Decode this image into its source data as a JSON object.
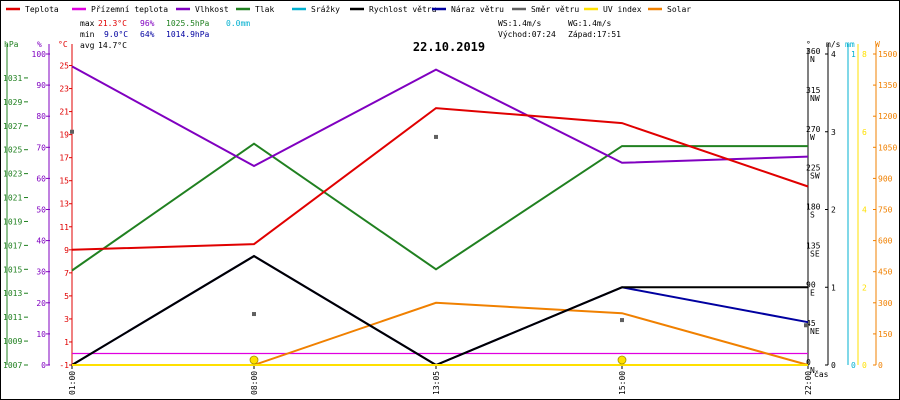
{
  "legend": [
    {
      "label": "Teplota",
      "color": "#e00000"
    },
    {
      "label": "Přízemní teplota",
      "color": "#e000e0"
    },
    {
      "label": "Vlhkost",
      "color": "#8000c0"
    },
    {
      "label": "Tlak",
      "color": "#208020"
    },
    {
      "label": "Srážky",
      "color": "#00b0d0"
    },
    {
      "label": "Rychlost větru",
      "color": "#000000"
    },
    {
      "label": "Náraz větru",
      "color": "#0000a0"
    },
    {
      "label": "Směr větru",
      "color": "#606060"
    },
    {
      "label": "UV index",
      "color": "#ffe000"
    },
    {
      "label": "Solar",
      "color": "#f08000"
    }
  ],
  "stats": {
    "max_label": "max",
    "max_temp": "21.3°C",
    "max_hum": "96%",
    "max_press": "1025.5hPa",
    "max_rain": "0.0mm",
    "min_label": "min",
    "min_temp": "9.0°C",
    "min_hum": "64%",
    "min_press": "1014.9hPa",
    "avg_label": "avg",
    "avg_temp": "14.7°C",
    "ws": "WS:1.4m/s",
    "wg": "WG:1.4m/s",
    "sunrise": "Východ:07:24",
    "sunset": "Západ:17:51"
  },
  "colors": {
    "temp": "#e00000",
    "ground": "#e000e0",
    "hum": "#8000c0",
    "press": "#208020",
    "rain": "#00b0d0",
    "wind": "#000000",
    "gust": "#0000a0",
    "dir": "#606060",
    "uv": "#ffe000",
    "solar": "#f08000"
  },
  "chart_data": {
    "type": "line",
    "title": "22.10.2019",
    "xlabel": "čas",
    "categories": [
      "01:00",
      "08:00",
      "13:05",
      "15:00",
      "22:00"
    ],
    "series": [
      {
        "name": "Teplota",
        "unit": "°C",
        "values": [
          9.0,
          9.5,
          21.3,
          20.0,
          14.5
        ]
      },
      {
        "name": "Přízemní teplota",
        "unit": "°C",
        "values": [
          0.0,
          0.0,
          0.0,
          0.0,
          0.0
        ]
      },
      {
        "name": "Vlhkost",
        "unit": "%",
        "values": [
          96,
          64,
          95,
          65,
          67
        ]
      },
      {
        "name": "Tlak",
        "unit": "hPa",
        "values": [
          1014.9,
          1025.5,
          1015.0,
          1025.3,
          1025.3
        ]
      },
      {
        "name": "Srážky",
        "unit": "mm",
        "values": [
          0.0,
          0.0,
          0.0,
          0.0,
          0.0
        ]
      },
      {
        "name": "Rychlost větru",
        "unit": "m/s",
        "values": [
          0.0,
          1.4,
          0.0,
          1.0,
          1.0
        ]
      },
      {
        "name": "Náraz větru",
        "unit": "m/s",
        "values": [
          0.0,
          1.4,
          0.0,
          1.0,
          0.55
        ]
      },
      {
        "name": "Směr větru",
        "unit": "°",
        "values": [
          270,
          59,
          264,
          52,
          46
        ]
      },
      {
        "name": "UV index",
        "unit": "",
        "values": [
          0,
          0,
          0,
          0,
          0
        ]
      },
      {
        "name": "Solar",
        "unit": "W",
        "values": [
          0,
          0,
          300,
          250,
          0
        ]
      }
    ],
    "axes": {
      "hPa": {
        "label": "hPa",
        "ticks": [
          "1007",
          "1009",
          "1011",
          "1013",
          "1015",
          "1017",
          "1019",
          "1021",
          "1023",
          "1025",
          "1027",
          "1029",
          "1031"
        ],
        "range": [
          1007,
          1033
        ]
      },
      "pct": {
        "label": "%",
        "ticks": [
          "0",
          "10",
          "20",
          "30",
          "40",
          "50",
          "60",
          "70",
          "80",
          "90",
          "100"
        ],
        "range": [
          0,
          100
        ]
      },
      "degC": {
        "label": "°C",
        "ticks": [
          "-1",
          "1",
          "3",
          "5",
          "7",
          "9",
          "11",
          "13",
          "15",
          "17",
          "19",
          "21",
          "23",
          "25"
        ],
        "range": [
          -1,
          26
        ]
      },
      "deg": {
        "label": "°",
        "ticks": [
          "0",
          "45",
          "90",
          "135",
          "180",
          "225",
          "270",
          "315",
          "360"
        ],
        "range": [
          0,
          360
        ]
      },
      "dirs": {
        "ticks": [
          "N",
          "NE",
          "E",
          "SE",
          "S",
          "SW",
          "W",
          "NW",
          "N"
        ]
      },
      "ms": {
        "label": "m/s",
        "ticks": [
          "0",
          "1",
          "2",
          "3",
          "4"
        ],
        "range": [
          0,
          4
        ]
      },
      "mm": {
        "label": "mm",
        "ticks": [
          "0",
          "1"
        ],
        "range": [
          0,
          1
        ]
      },
      "uv": {
        "ticks": [
          "0",
          "2",
          "4",
          "6",
          "8"
        ],
        "range": [
          0,
          8
        ]
      },
      "W": {
        "label": "W",
        "ticks": [
          "0",
          "150",
          "300",
          "450",
          "600",
          "750",
          "900",
          "1050",
          "1200",
          "1350",
          "1500"
        ],
        "range": [
          0,
          1500
        ]
      }
    },
    "grid": false
  }
}
